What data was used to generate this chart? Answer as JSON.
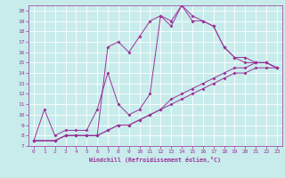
{
  "xlabel": "Windchill (Refroidissement éolien,°C)",
  "xlim": [
    -0.5,
    23.5
  ],
  "ylim": [
    7,
    20.5
  ],
  "xticks": [
    0,
    1,
    2,
    3,
    4,
    5,
    6,
    7,
    8,
    9,
    10,
    11,
    12,
    13,
    14,
    15,
    16,
    17,
    18,
    19,
    20,
    21,
    22,
    23
  ],
  "yticks": [
    7,
    8,
    9,
    10,
    11,
    12,
    13,
    14,
    15,
    16,
    17,
    18,
    19,
    20
  ],
  "bg_color": "#c8ecec",
  "line_color": "#993399",
  "grid_color": "#ffffff",
  "lines": [
    {
      "x": [
        0,
        1,
        2,
        3,
        4,
        5,
        6,
        7,
        8,
        9,
        10,
        11,
        12,
        13,
        14,
        15,
        16,
        17,
        18,
        19,
        20,
        21,
        22,
        23
      ],
      "y": [
        7.5,
        10.5,
        8.0,
        8.5,
        8.5,
        8.5,
        10.5,
        14.0,
        11.0,
        10.0,
        10.5,
        12.0,
        19.5,
        18.5,
        20.5,
        19.5,
        19.0,
        18.5,
        16.5,
        15.5,
        15.5,
        15.0,
        15.0,
        14.5
      ]
    },
    {
      "x": [
        0,
        2,
        3,
        4,
        5,
        6,
        7,
        8,
        9,
        10,
        11,
        12,
        13,
        14,
        15,
        16,
        17,
        18,
        19,
        20,
        21,
        22,
        23
      ],
      "y": [
        7.5,
        7.5,
        8.0,
        8.0,
        8.0,
        8.0,
        16.5,
        17.0,
        16.0,
        17.5,
        19.0,
        19.5,
        19.0,
        20.5,
        19.0,
        19.0,
        18.5,
        16.5,
        15.5,
        15.0,
        15.0,
        15.0,
        14.5
      ]
    },
    {
      "x": [
        0,
        2,
        3,
        4,
        5,
        6,
        7,
        8,
        9,
        10,
        11,
        12,
        13,
        14,
        15,
        16,
        17,
        18,
        19,
        20,
        21,
        22,
        23
      ],
      "y": [
        7.5,
        7.5,
        8.0,
        8.0,
        8.0,
        8.0,
        8.5,
        9.0,
        9.0,
        9.5,
        10.0,
        10.5,
        11.5,
        12.0,
        12.5,
        13.0,
        13.5,
        14.0,
        14.5,
        14.5,
        15.0,
        15.0,
        14.5
      ]
    },
    {
      "x": [
        0,
        2,
        3,
        4,
        5,
        6,
        7,
        8,
        9,
        10,
        11,
        12,
        13,
        14,
        15,
        16,
        17,
        18,
        19,
        20,
        21,
        22,
        23
      ],
      "y": [
        7.5,
        7.5,
        8.0,
        8.0,
        8.0,
        8.0,
        8.5,
        9.0,
        9.0,
        9.5,
        10.0,
        10.5,
        11.0,
        11.5,
        12.0,
        12.5,
        13.0,
        13.5,
        14.0,
        14.0,
        14.5,
        14.5,
        14.5
      ]
    }
  ]
}
